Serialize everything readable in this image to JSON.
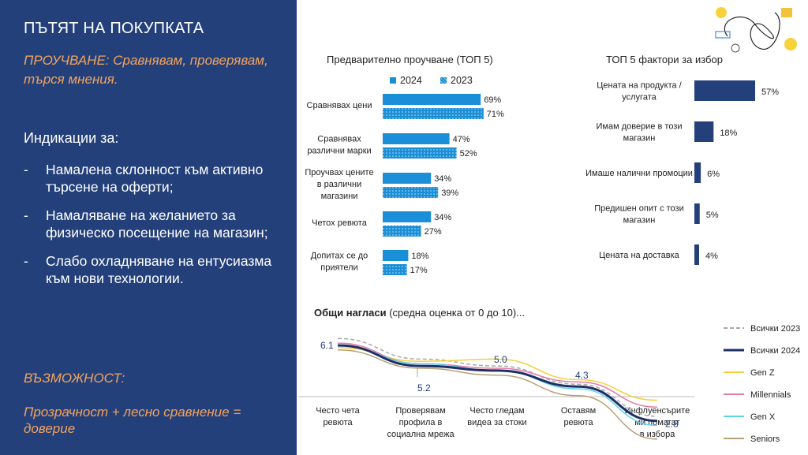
{
  "left": {
    "title": "ПЪТЯТ НА ПОКУПКАТА",
    "subtitle": "ПРОУЧВАНЕ: Сравнявам, проверявам, търся мнения.",
    "indications_title": "Индикации за:",
    "indications": [
      "Намалена склонност към активно търсене на оферти;",
      "Намаляване на желанието за физическо посещение на магазин;",
      "Слабо охладняване на ентусиазма към нови технологии."
    ],
    "opportunity_title": "ВЪЗМОЖНОСТ:",
    "opportunity_text": "Прозрачност + лесно сравнение = доверие"
  },
  "colors": {
    "panel": "#24407a",
    "accent": "#f3a35c",
    "bar_blue": "#1a8ed6",
    "navy": "#24407a"
  },
  "chart_data": [
    {
      "type": "bar",
      "orientation": "horizontal",
      "title": "Предварително проучване (ТОП 5)",
      "categories": [
        "Сравнявах цени",
        "Сравнявах различни марки",
        "Проучвах цените в различни магазини",
        "Четох ревюта",
        "Допитах се до приятели"
      ],
      "category_lines": [
        [
          "Сравнявах цени"
        ],
        [
          "Сравнявах",
          "различни марки"
        ],
        [
          "Проучвах цените",
          "в различни",
          "магазини"
        ],
        [
          "Четох ревюта"
        ],
        [
          "Допитах се до",
          "приятели"
        ]
      ],
      "series": [
        {
          "name": "2024",
          "values": [
            69,
            47,
            34,
            34,
            18
          ],
          "labels": [
            "69%",
            "47%",
            "34%",
            "34%",
            "18%"
          ]
        },
        {
          "name": "2023",
          "values": [
            71,
            52,
            39,
            27,
            17
          ],
          "labels": [
            "71%",
            "52%",
            "39%",
            "27%",
            "17%"
          ]
        }
      ],
      "unit": "%"
    },
    {
      "type": "bar",
      "orientation": "horizontal",
      "title": "ТОП 5 фактори за избор",
      "categories": [
        "Цената на продукта / услугата",
        "Имам доверие в този магазин",
        "Имаше налични промоции",
        "Предишен опит с този магазин",
        "Цената на доставка"
      ],
      "category_lines": [
        [
          "Цената на продукта /",
          "услугата"
        ],
        [
          "Имам доверие в този",
          "магазин"
        ],
        [
          "Имаше налични промоции"
        ],
        [
          "Предишен опит с този",
          "магазин"
        ],
        [
          "Цената на доставка"
        ]
      ],
      "values": [
        57,
        18,
        6,
        5,
        4
      ],
      "labels": [
        "57%",
        "18%",
        "6%",
        "5%",
        "4%"
      ],
      "unit": "%"
    },
    {
      "type": "line",
      "title_bold": "Общи нагласи",
      "title_rest": " (средна оценка от 0 до 10)...",
      "categories": [
        "Често чета ревюта",
        "Проверявам профила в социална мрежа",
        "Често гледам видеа за стоки",
        "Оставям ревюта",
        "Инфлуенсърите ми помагат в избора"
      ],
      "category_lines": [
        [
          "Често чета",
          "ревюта"
        ],
        [
          "Проверявам",
          "профила в",
          "социална мрежа"
        ],
        [
          "Често гледам",
          "видеа за стоки"
        ],
        [
          "Оставям",
          "ревюта"
        ],
        [
          "Инфлуенсърите",
          "ми помагат",
          "в избора"
        ]
      ],
      "ylim": [
        0,
        10
      ],
      "series": [
        {
          "name": "Всички 2023",
          "color": "#a9a9a9",
          "dashed": true,
          "values": [
            6.4,
            5.5,
            5.2,
            4.4,
            3.0
          ]
        },
        {
          "name": "Всички 2024",
          "color": "#1e2f66",
          "width": 3,
          "values": [
            6.1,
            5.2,
            5.0,
            4.3,
            2.8
          ]
        },
        {
          "name": "Gen Z",
          "color": "#f2d13c",
          "values": [
            6.0,
            5.4,
            5.5,
            4.6,
            3.7
          ]
        },
        {
          "name": "Millennials",
          "color": "#e07aa8",
          "values": [
            6.2,
            5.3,
            5.1,
            4.5,
            3.4
          ]
        },
        {
          "name": "Gen X",
          "color": "#5fd3e6",
          "values": [
            6.1,
            5.3,
            5.0,
            4.2,
            2.6
          ]
        },
        {
          "name": "Seniors",
          "color": "#b8a07a",
          "values": [
            5.9,
            5.1,
            4.8,
            3.9,
            2.0
          ]
        }
      ],
      "point_labels": [
        {
          "index": 0,
          "text": "6.1"
        },
        {
          "index": 1,
          "text": "5.2"
        },
        {
          "index": 2,
          "text": "5.0"
        },
        {
          "index": 3,
          "text": "4.3"
        },
        {
          "index": 4,
          "text": "2.8"
        }
      ]
    }
  ]
}
